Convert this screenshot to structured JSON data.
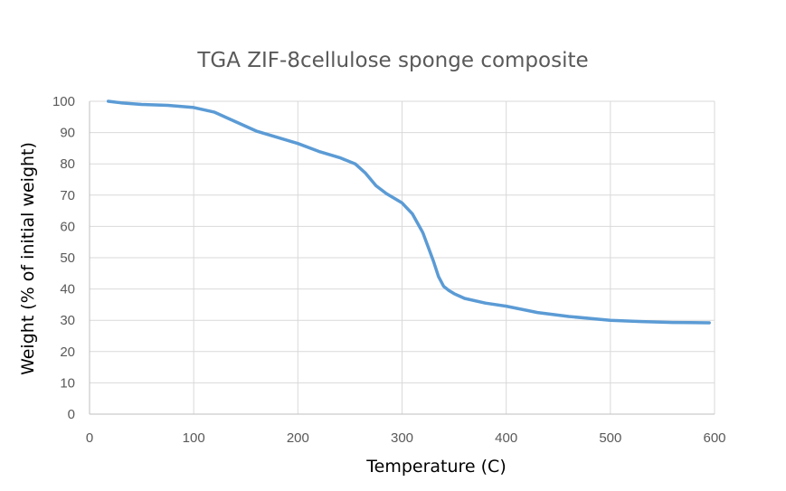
{
  "chart_data": {
    "type": "line",
    "title": "TGA ZIF-8cellulose sponge composite",
    "xlabel": "Temperature (C)",
    "ylabel": "Weight (% of initial weight)",
    "xlim": [
      0,
      600
    ],
    "ylim": [
      0,
      100
    ],
    "x_ticks": [
      0,
      100,
      200,
      300,
      400,
      500,
      600
    ],
    "y_ticks": [
      0,
      10,
      20,
      30,
      40,
      50,
      60,
      70,
      80,
      90,
      100
    ],
    "grid": true,
    "legend": "none",
    "series": [
      {
        "color": "#5b9bd5",
        "x": [
          18,
          30,
          50,
          75,
          100,
          120,
          140,
          160,
          180,
          200,
          220,
          240,
          255,
          265,
          275,
          285,
          300,
          310,
          320,
          330,
          335,
          340,
          345,
          350,
          360,
          380,
          400,
          430,
          460,
          500,
          530,
          560,
          595
        ],
        "y": [
          100,
          99.5,
          99,
          98.7,
          98,
          96.5,
          93.5,
          90.5,
          88.5,
          86.5,
          84,
          82,
          80,
          77,
          73,
          70.5,
          67.5,
          64,
          58,
          49,
          44,
          40.8,
          39.5,
          38.5,
          37,
          35.5,
          34.5,
          32.5,
          31.2,
          30,
          29.6,
          29.3,
          29.2
        ]
      }
    ]
  }
}
